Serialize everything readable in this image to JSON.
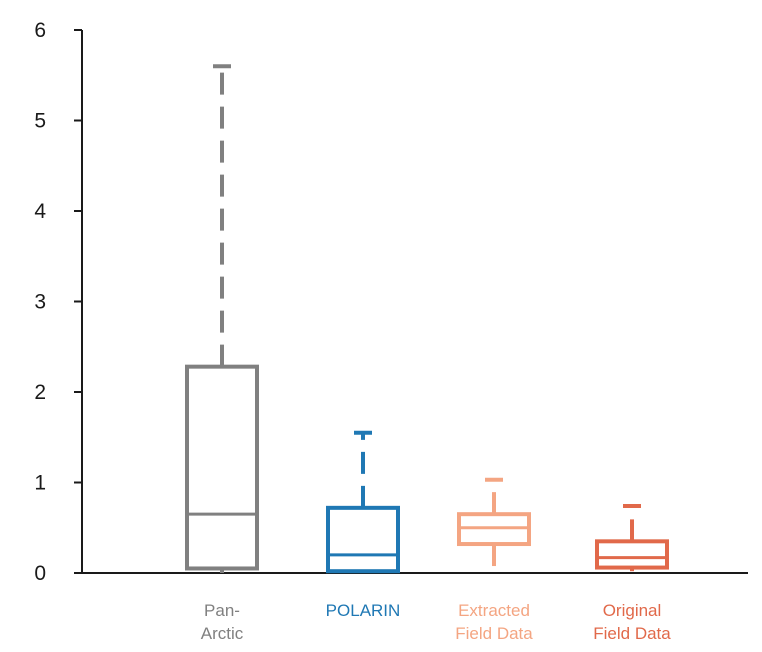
{
  "chart_data": {
    "type": "box",
    "title": "",
    "xlabel": "",
    "ylabel": "",
    "ylim": [
      0,
      6
    ],
    "yticks": [
      "0",
      "1",
      "2",
      "3",
      "4",
      "5",
      "6"
    ],
    "grid": false,
    "legend": "none",
    "series": [
      {
        "category_lines": [
          "Pan-",
          "Arctic"
        ],
        "color": "#808080",
        "whisker_low": 0.0,
        "q1": 0.05,
        "median": 0.65,
        "q3": 2.28,
        "whisker_high": 5.6
      },
      {
        "category_lines": [
          "POLARIN"
        ],
        "color": "#1f78b4",
        "whisker_low": 0.0,
        "q1": 0.02,
        "median": 0.2,
        "q3": 0.72,
        "whisker_high": 1.55
      },
      {
        "category_lines": [
          "Extracted",
          "Field Data"
        ],
        "color": "#f4a582",
        "whisker_low": 0.0,
        "q1": 0.32,
        "median": 0.5,
        "q3": 0.65,
        "whisker_high": 1.03
      },
      {
        "category_lines": [
          "Original",
          "Field Data"
        ],
        "color": "#e1694a",
        "whisker_low": 0.02,
        "q1": 0.06,
        "median": 0.17,
        "q3": 0.35,
        "whisker_high": 0.74
      }
    ]
  }
}
